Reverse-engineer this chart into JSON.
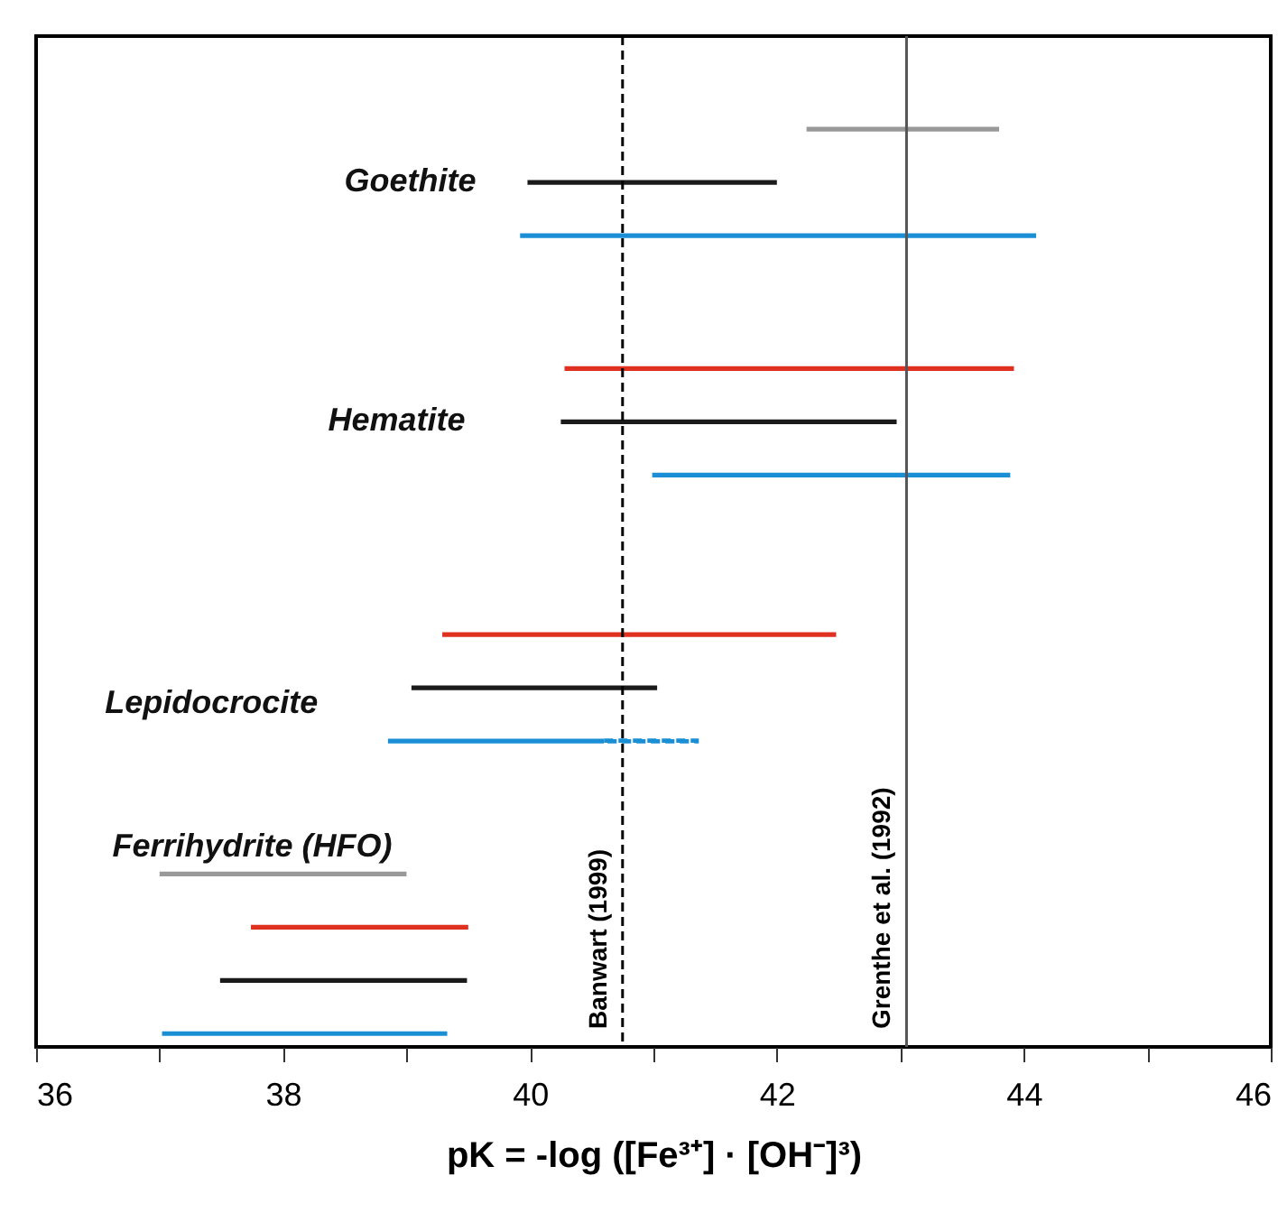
{
  "chart_data": {
    "type": "bar",
    "orientation": "horizontal",
    "xlabel": "pK = -log ([Fe³⁺] · [OH⁻]³)",
    "categories": [
      null,
      null,
      null,
      null,
      null,
      null,
      null,
      null,
      null,
      null,
      null,
      null,
      null,
      null,
      null,
      null,
      null,
      null,
      null,
      null,
      null,
      null,
      null,
      null,
      null,
      null,
      null,
      null,
      null,
      null,
      null,
      null,
      null,
      null,
      null,
      null,
      null,
      null
    ],
    "series": [
      {
        "line_style": "solid",
        "base": [
          null,
          null,
          null,
          42.24,
          null,
          39.98,
          null,
          39.92,
          null,
          null,
          null,
          null,
          40.28,
          null,
          40.25,
          null,
          40.99,
          null,
          null,
          null,
          null,
          null,
          39.29,
          null,
          39.04,
          null,
          38.85,
          null,
          null,
          null,
          null,
          37.0,
          null,
          37.74,
          null,
          37.49,
          null,
          37.02
        ],
        "values": [
          null,
          null,
          null,
          1.56,
          null,
          2.02,
          null,
          4.18,
          null,
          null,
          null,
          null,
          3.64,
          null,
          2.72,
          null,
          2.9,
          null,
          null,
          null,
          null,
          null,
          3.19,
          null,
          1.99,
          null,
          1.75,
          null,
          null,
          null,
          null,
          2.0,
          null,
          1.76,
          null,
          2.0,
          null,
          2.31
        ],
        "colors": [
          null,
          null,
          null,
          "#999999",
          null,
          "#1a1a1a",
          null,
          "#1a8fd6",
          null,
          null,
          null,
          null,
          "#e03020",
          null,
          "#1a1a1a",
          null,
          "#1a8fd6",
          null,
          null,
          null,
          null,
          null,
          "#e03020",
          null,
          "#1a1a1a",
          null,
          "#1a8fd6",
          null,
          null,
          null,
          null,
          "#999999",
          null,
          "#e03020",
          null,
          "#1a1a1a",
          null,
          "#1a8fd6"
        ]
      },
      {
        "line_style": "dashed",
        "base": [
          null,
          null,
          null,
          null,
          null,
          null,
          null,
          null,
          null,
          null,
          null,
          null,
          null,
          null,
          null,
          null,
          null,
          null,
          null,
          null,
          null,
          null,
          null,
          null,
          null,
          null,
          40.6,
          null,
          null,
          null,
          null,
          null,
          null,
          null,
          null,
          null,
          null,
          null
        ],
        "values": [
          null,
          null,
          null,
          null,
          null,
          null,
          null,
          null,
          null,
          null,
          null,
          null,
          null,
          null,
          null,
          null,
          null,
          null,
          null,
          null,
          null,
          null,
          null,
          null,
          null,
          null,
          0.75,
          null,
          null,
          null,
          null,
          null,
          null,
          null,
          null,
          null,
          null,
          null
        ],
        "colors": [
          null,
          null,
          null,
          null,
          null,
          null,
          null,
          null,
          null,
          null,
          null,
          null,
          null,
          null,
          null,
          null,
          null,
          null,
          null,
          null,
          null,
          null,
          null,
          null,
          null,
          null,
          "#1a8fd6",
          null,
          null,
          null,
          null,
          null,
          null,
          null,
          null,
          null,
          null,
          null
        ]
      }
    ],
    "xlim": [
      36,
      46
    ],
    "xticks": [
      36,
      {
        "value": 37,
        "label": null
      },
      38,
      {
        "value": 39,
        "label": null
      },
      40,
      {
        "value": 41,
        "label": null
      },
      42,
      {
        "value": 43,
        "label": null
      },
      44,
      {
        "value": 45,
        "label": null
      },
      46
    ],
    "tick_labels": "x",
    "ref_lines": [
      {
        "axis": "x",
        "value": 40.75,
        "label": "Banwart (1999)",
        "color": "#000000",
        "line_style": "dashed"
      },
      {
        "axis": "x",
        "value": 43.05,
        "label": "Grenthe et al. (1992)",
        "color": "#555555",
        "line_style": "solid"
      }
    ],
    "annotations": [
      "Goethite",
      "Hematite",
      "Lepidocrocite",
      "Ferrihydrite (HFO)"
    ]
  }
}
